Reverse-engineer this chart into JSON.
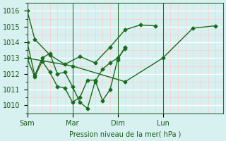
{
  "bg_color": "#d7f0f0",
  "grid_color": "#ffffff",
  "line_color": "#1a6b1a",
  "xlabel": "Pression niveau de la mer( hPa )",
  "ylim": [
    1009.5,
    1016.5
  ],
  "yticks": [
    1010,
    1011,
    1012,
    1013,
    1014,
    1015,
    1016
  ],
  "xtick_labels": [
    "Sam",
    "Mar",
    "Dim",
    "Lun"
  ],
  "xtick_positions": [
    0,
    3,
    6,
    9
  ],
  "vline_positions": [
    0,
    3,
    6,
    9
  ],
  "minor_grid_color": "#ffcccc",
  "marker_size": 2.5,
  "linewidth": 1.0,
  "xlim": [
    0,
    13
  ],
  "series": [
    {
      "x": [
        0,
        0.5,
        1.5,
        2.5,
        3.5,
        4.5,
        5.5,
        6.5,
        7.5,
        8.5
      ],
      "y": [
        1016.0,
        1014.2,
        1013.2,
        1012.6,
        1013.1,
        1012.7,
        1013.7,
        1014.8,
        1015.1,
        1015.05
      ]
    },
    {
      "x": [
        0,
        0.5,
        1.0,
        1.5,
        2.0,
        2.5,
        3.0,
        3.5,
        4.0,
        4.5,
        5.0,
        5.5,
        6.0,
        6.5
      ],
      "y": [
        1014.0,
        1011.9,
        1013.0,
        1013.3,
        1012.0,
        1012.1,
        1011.2,
        1010.2,
        1009.8,
        1011.5,
        1012.3,
        1012.7,
        1013.0,
        1013.6
      ]
    },
    {
      "x": [
        0,
        3.0,
        6.5,
        9.0,
        11.0,
        12.5
      ],
      "y": [
        1013.0,
        1012.5,
        1011.5,
        1013.0,
        1014.9,
        1015.05
      ]
    },
    {
      "x": [
        0,
        0.5,
        1.0,
        1.5,
        2.0,
        2.5,
        3.0,
        3.5,
        4.0,
        4.5,
        5.0,
        5.5,
        6.0,
        6.5
      ],
      "y": [
        1013.0,
        1011.8,
        1012.8,
        1012.1,
        1011.2,
        1011.1,
        1010.2,
        1010.5,
        1011.6,
        1011.6,
        1010.3,
        1011.0,
        1012.9,
        1013.7
      ]
    }
  ]
}
